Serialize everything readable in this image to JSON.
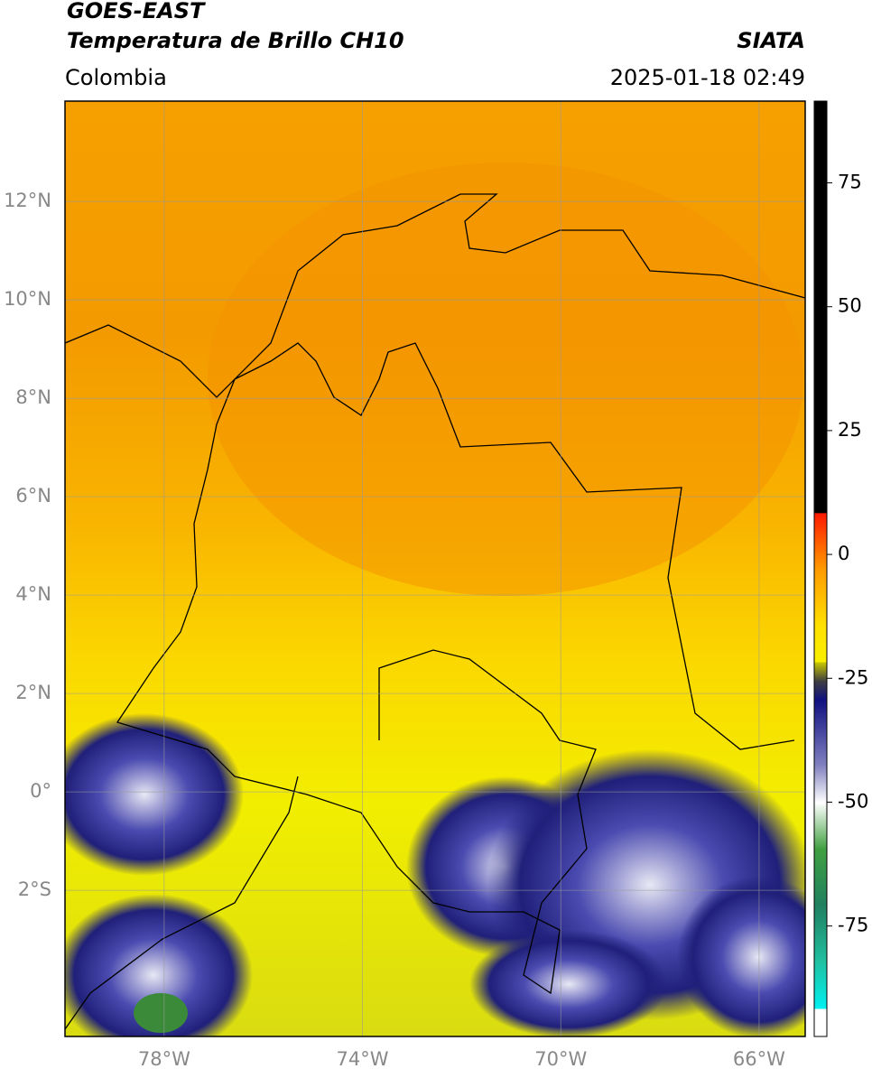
{
  "header": {
    "title_line1": "GOES-EAST",
    "title_line2": "Temperatura de Brillo CH10",
    "region": "Colombia",
    "source": "SIATA",
    "timestamp": "2025-01-18 02:49"
  },
  "map": {
    "lonlim": [
      -80,
      -65.07
    ],
    "latlim": [
      -4.97,
      14.04
    ],
    "lonticks": [
      {
        "value": -78,
        "label": "78°W"
      },
      {
        "value": -74,
        "label": "74°W"
      },
      {
        "value": -70,
        "label": "70°W"
      },
      {
        "value": -66,
        "label": "66°W"
      }
    ],
    "latticks": [
      {
        "value": 12,
        "label": "12°N"
      },
      {
        "value": 10,
        "label": "10°N"
      },
      {
        "value": 8,
        "label": "8°N"
      },
      {
        "value": 6,
        "label": "6°N"
      },
      {
        "value": 4,
        "label": "4°N"
      },
      {
        "value": 2,
        "label": "2°N"
      },
      {
        "value": 0,
        "label": "0°"
      },
      {
        "value": -2,
        "label": "2°S"
      }
    ]
  },
  "colorbar": {
    "lim": [
      -97.3,
      91.5
    ],
    "ticks": [
      75,
      50,
      25,
      0,
      -25,
      -50,
      -75
    ]
  }
}
